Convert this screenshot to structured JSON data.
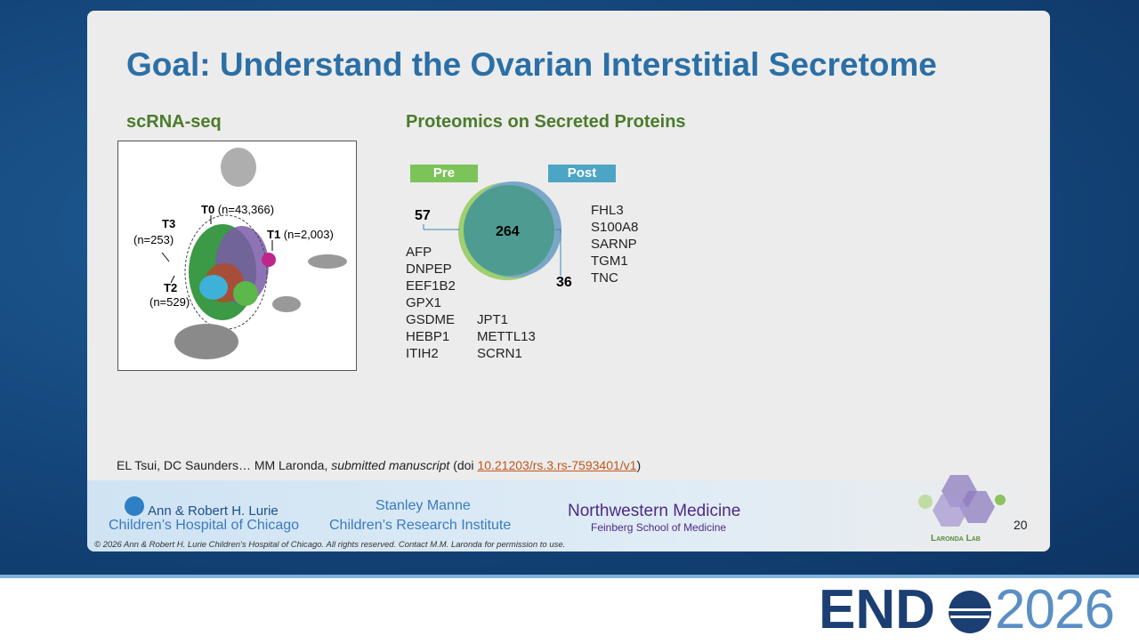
{
  "slide": {
    "title": "Goal: Understand the Ovarian Interstitial Secretome",
    "left_heading": "scRNA-seq",
    "umap_labels": [
      {
        "name": "T0",
        "count": "(n=43,366)"
      },
      {
        "name": "T3",
        "count": "(n=253)"
      },
      {
        "name": "T1",
        "count": "(n=2,003)"
      },
      {
        "name": "T2",
        "count": "(n=529)"
      }
    ],
    "right_heading": "Proteomics on Secreted Proteins",
    "venn": {
      "pre_label": "Pre",
      "post_label": "Post",
      "pre_only": 57,
      "shared": 264,
      "post_only": 36
    },
    "pre_only_proteins": [
      [
        "AFP",
        "DNPEP",
        "EEF1B2",
        "GPX1",
        "GSDME",
        "HEBP1",
        "ITIH2"
      ],
      [
        "JPT1",
        "METTL13",
        "SCRN1"
      ]
    ],
    "post_only_proteins": [
      "FHL3",
      "S100A8",
      "SARNP",
      "TGM1",
      "TNC"
    ],
    "citation": {
      "authors": "EL Tsui, DC Saunders… MM Laronda,",
      "status": "submitted manuscript",
      "doi_open": "(doi",
      "doi": "10.21203/rs.3.rs-7593401/v1",
      "doi_close": ")"
    }
  },
  "footer": {
    "lurie_line1": "Ann & Robert H. Lurie",
    "lurie_line2": "Children’s Hospital of Chicago",
    "manne_line1": "Stanley Manne",
    "manne_line2": "Children’s Research Institute",
    "nm_line1": "Northwestern Medicine",
    "nm_line2": "Feinberg School of Medicine",
    "lab": "Laronda Lab",
    "page_number": "20",
    "copyright": "© 2026 Ann & Robert H. Lurie Children's Hospital of Chicago. All rights reserved. Contact M.M. Laronda for permission to use."
  },
  "banner": {
    "brand_left": "END",
    "brand_right": "2026"
  }
}
